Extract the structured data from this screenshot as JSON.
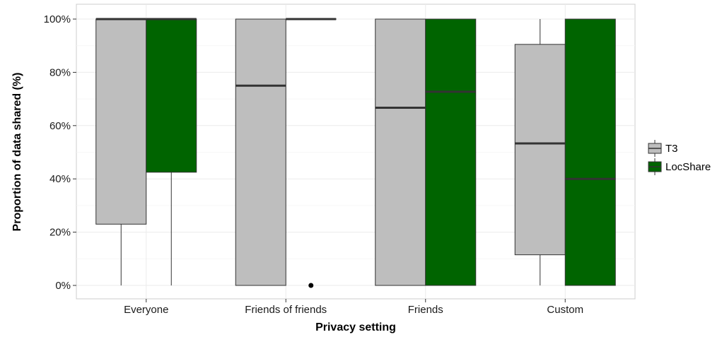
{
  "chart_data": {
    "type": "boxplot",
    "title": "",
    "xlabel": "Privacy setting",
    "ylabel": "Proportion of data shared (%)",
    "ylim": [
      0,
      100
    ],
    "y_ticks": [
      0,
      20,
      40,
      60,
      80,
      100
    ],
    "y_tick_labels": [
      "0%",
      "20%",
      "40%",
      "60%",
      "80%",
      "100%"
    ],
    "categories": [
      "Everyone",
      "Friends of friends",
      "Friends",
      "Custom"
    ],
    "grid": true,
    "legend_position": "right",
    "series": [
      {
        "name": "T3",
        "color": "#bebebe",
        "boxes": [
          {
            "min": 0,
            "q1": 23,
            "median": 100,
            "q3": 100,
            "max": 100,
            "outliers": []
          },
          {
            "min": 0,
            "q1": 0,
            "median": 75,
            "q3": 100,
            "max": 100,
            "outliers": []
          },
          {
            "min": 0,
            "q1": 0,
            "median": 66.7,
            "q3": 100,
            "max": 100,
            "outliers": []
          },
          {
            "min": 0,
            "q1": 11.5,
            "median": 53.3,
            "q3": 90.5,
            "max": 100,
            "outliers": []
          }
        ]
      },
      {
        "name": "LocShare",
        "color": "#006400",
        "boxes": [
          {
            "min": 0,
            "q1": 42.5,
            "median": 100,
            "q3": 100,
            "max": 100,
            "outliers": []
          },
          {
            "min": 100,
            "q1": 100,
            "median": 100,
            "q3": 100,
            "max": 100,
            "outliers": [
              0
            ]
          },
          {
            "min": 0,
            "q1": 0,
            "median": 72.7,
            "q3": 100,
            "max": 100,
            "outliers": []
          },
          {
            "min": 0,
            "q1": 0,
            "median": 40,
            "q3": 100,
            "max": 100,
            "outliers": []
          }
        ]
      }
    ]
  }
}
